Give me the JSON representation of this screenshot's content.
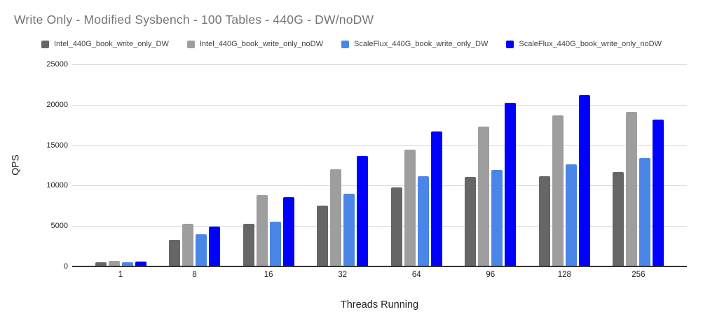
{
  "chart_data": {
    "type": "bar",
    "title": "Write Only - Modified Sysbench - 100 Tables - 440G - DW/noDW",
    "xlabel": "Threads Running",
    "ylabel": "QPS",
    "ylim": [
      0,
      25000
    ],
    "yticks": [
      0,
      5000,
      10000,
      15000,
      20000,
      25000
    ],
    "grid": true,
    "legend_position": "top",
    "categories": [
      "1",
      "8",
      "16",
      "32",
      "64",
      "96",
      "128",
      "256"
    ],
    "series": [
      {
        "name": "Intel_440G_book_write_only_DW",
        "color": "#666666",
        "values": [
          520,
          3250,
          5300,
          7500,
          9800,
          11050,
          11150,
          11700
        ]
      },
      {
        "name": "Intel_440G_book_write_only_noDW",
        "color": "#9e9e9e",
        "values": [
          680,
          5300,
          8850,
          12050,
          14450,
          17300,
          18650,
          19150
        ]
      },
      {
        "name": "ScaleFlux_440G_book_write_only_DW",
        "color": "#4a86e8",
        "values": [
          490,
          3950,
          5550,
          9000,
          11200,
          11950,
          12600,
          13450
        ]
      },
      {
        "name": "ScaleFlux_440G_book_write_only_noDW",
        "color": "#0000ff",
        "values": [
          610,
          4900,
          8600,
          13650,
          16700,
          20250,
          21200,
          18200
        ]
      }
    ]
  },
  "colors": {
    "title_text": "#757575",
    "axis_text": "#222222",
    "legend_text": "#424242",
    "gridline": "#d9d9d9",
    "axis_line": "#333333",
    "background": "#ffffff"
  }
}
